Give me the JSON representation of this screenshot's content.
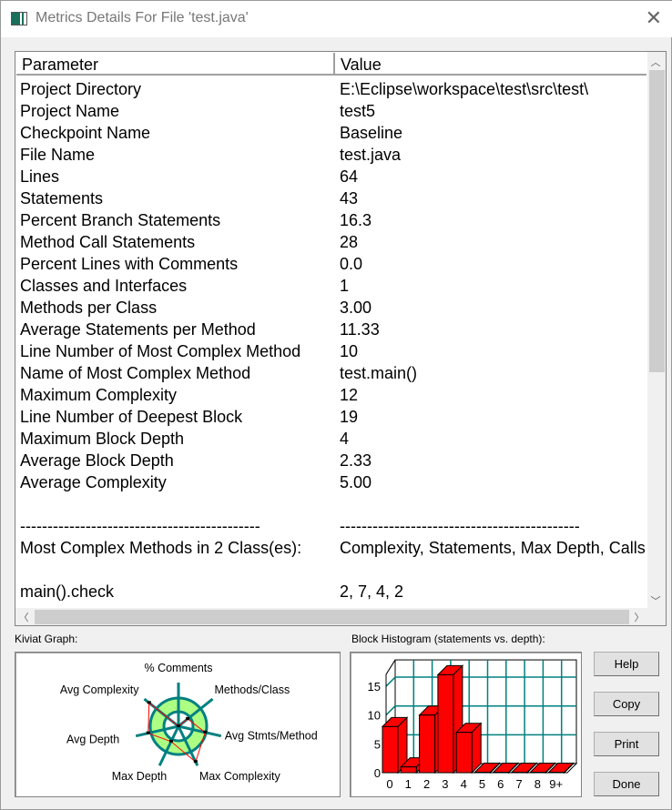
{
  "window": {
    "title": "Metrics Details For File 'test.java'",
    "close_icon": "close-icon"
  },
  "table": {
    "headers": [
      "Parameter",
      "Value"
    ],
    "rows": [
      [
        "Project Directory",
        "E:\\Eclipse\\workspace\\test\\src\\test\\"
      ],
      [
        "Project Name",
        "test5"
      ],
      [
        "Checkpoint Name",
        "Baseline"
      ],
      [
        "File Name",
        "test.java"
      ],
      [
        "Lines",
        "64"
      ],
      [
        "Statements",
        "43"
      ],
      [
        "Percent Branch Statements",
        "16.3"
      ],
      [
        "Method Call Statements",
        "28"
      ],
      [
        "Percent Lines with Comments",
        "0.0"
      ],
      [
        "Classes and Interfaces",
        "1"
      ],
      [
        "Methods per Class",
        "3.00"
      ],
      [
        "Average Statements per Method",
        "11.33"
      ],
      [
        "Line Number of Most Complex Method",
        "10"
      ],
      [
        "Name of Most Complex Method",
        "test.main()"
      ],
      [
        "Maximum Complexity",
        "12"
      ],
      [
        "Line Number of Deepest Block",
        "19"
      ],
      [
        "Maximum Block Depth",
        "4"
      ],
      [
        "Average Block Depth",
        "2.33"
      ],
      [
        "Average Complexity",
        "5.00"
      ],
      [
        "",
        ""
      ],
      [
        "--------------------------------------------",
        "--------------------------------------------"
      ],
      [
        "Most Complex Methods in 2 Class(es):",
        "Complexity, Statements, Max Depth, Calls"
      ],
      [
        "",
        ""
      ],
      [
        "main().check",
        "2, 7, 4, 2"
      ]
    ]
  },
  "kiviat": {
    "label": "Kiviat Graph:",
    "axes": [
      "% Comments",
      "Methods/Class",
      "Avg Stmts/Method",
      "Max Complexity",
      "Max Depth",
      "Avg Depth",
      "Avg Complexity"
    ],
    "levels": [
      0.0,
      0.42,
      0.97,
      1.4,
      0.6,
      1.1,
      1.33
    ],
    "colors": {
      "axis": "#008080",
      "band": "#adff84",
      "polygon": "#ff0000"
    }
  },
  "histogram": {
    "label": "Block Histogram (statements vs. depth):"
  },
  "chart_data": {
    "type": "bar",
    "title": "Block Histogram (statements vs. depth):",
    "categories": [
      "0",
      "1",
      "2",
      "3",
      "4",
      "5",
      "6",
      "7",
      "8",
      "9+"
    ],
    "values": [
      8,
      1,
      10,
      17,
      7,
      0,
      0,
      0,
      0,
      0
    ],
    "yticks": [
      0,
      5,
      10,
      15
    ],
    "ylim": [
      0,
      18
    ],
    "grid": true,
    "bar_color": "#ff0000",
    "grid_color": "#008080"
  },
  "buttons": {
    "help": "Help",
    "copy": "Copy",
    "print": "Print",
    "done": "Done"
  }
}
